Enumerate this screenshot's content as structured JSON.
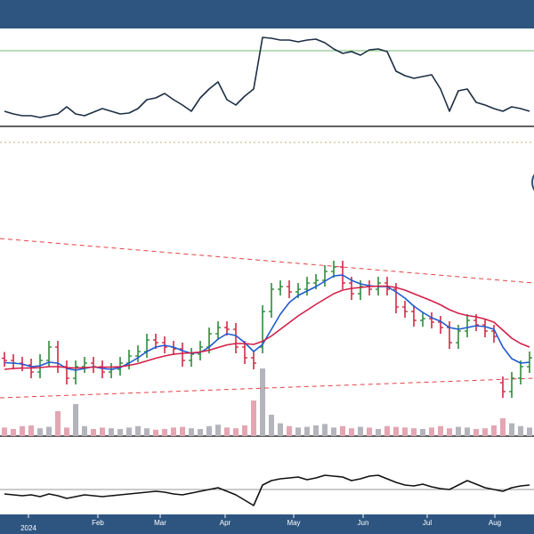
{
  "chart_data": [
    {
      "type": "line",
      "xlim": [
        -0.5,
        59.5
      ],
      "ylim": [
        0,
        110
      ],
      "series": [
        {
          "color": "#1c2e44",
          "values": [
            17,
            14,
            12,
            12,
            10,
            12,
            14,
            22,
            14,
            12,
            16,
            20,
            17,
            14,
            15,
            20,
            30,
            32,
            37,
            30,
            24,
            17,
            32,
            42,
            50,
            30,
            24,
            34,
            42,
            100,
            99,
            97,
            97,
            95,
            97,
            98,
            94,
            87,
            82,
            84,
            80,
            86,
            87,
            84,
            62,
            57,
            54,
            56,
            58,
            42,
            17,
            40,
            42,
            27,
            24,
            20,
            17,
            22,
            20,
            17
          ]
        }
      ],
      "hlines": [
        {
          "value": 85,
          "color": "#6dbb6d"
        }
      ]
    },
    {
      "type": "ohlc",
      "xlim": [
        -0.5,
        59.5
      ],
      "ylim": [
        40,
        105
      ],
      "y2lim": [
        0,
        100
      ],
      "up_color": "#2e8b3a",
      "down_color": "#d02a44",
      "open": [
        57.5,
        57,
        56.4,
        56,
        54.4,
        57,
        60,
        55.6,
        53,
        55.6,
        56.4,
        55.6,
        54.4,
        55,
        56.4,
        58,
        59,
        61.6,
        61,
        60,
        59.6,
        57,
        58.4,
        60,
        63,
        64.4,
        64,
        60,
        57.6,
        60,
        68,
        73,
        73.6,
        72.4,
        73,
        74.4,
        75,
        77,
        78,
        74.4,
        72,
        73.6,
        73,
        74.4,
        73,
        69,
        68,
        66,
        66.4,
        65.6,
        64.4,
        61,
        63.6,
        66,
        65,
        63.6,
        52,
        50,
        53,
        55.6
      ],
      "high": [
        58.9,
        58.4,
        57.8,
        57.4,
        58.4,
        61.4,
        61.4,
        57,
        57,
        57.8,
        57.8,
        57,
        56.4,
        57.8,
        59.4,
        60.4,
        63,
        63,
        62.4,
        61.4,
        61,
        59.8,
        61.4,
        64.4,
        65.8,
        65.8,
        65.4,
        61.4,
        59,
        69.4,
        74.4,
        75,
        75,
        74.4,
        75.8,
        76.4,
        78.4,
        79.4,
        79.4,
        75.8,
        75,
        75,
        75.8,
        75.8,
        74.4,
        70.4,
        69.4,
        67.8,
        67.8,
        67,
        65.8,
        65,
        67.4,
        67.4,
        66.4,
        65,
        53.4,
        54.4,
        57,
        59
      ],
      "low": [
        55.6,
        55,
        54.6,
        53,
        53,
        55.6,
        54.2,
        51.6,
        51.6,
        54.2,
        54.2,
        53,
        53,
        53.6,
        55,
        56.6,
        57.6,
        59.6,
        58.6,
        58.2,
        55.6,
        55.6,
        57,
        58.6,
        61.6,
        62.6,
        58.6,
        56.2,
        55,
        58.6,
        66.6,
        71.6,
        71,
        71,
        71.6,
        73,
        73.6,
        75.6,
        73,
        70.6,
        70.6,
        71.6,
        71.6,
        71.6,
        67.6,
        66.6,
        64.6,
        64.6,
        64.2,
        63,
        59.6,
        59.6,
        62.2,
        63.6,
        62.2,
        61,
        48.6,
        48.6,
        51.6,
        54.2
      ],
      "close": [
        57,
        56.4,
        56,
        54.4,
        57,
        60,
        55.6,
        53,
        55.6,
        56.4,
        55.6,
        54.4,
        55,
        56.4,
        58,
        59,
        61.6,
        61,
        60,
        59.6,
        57,
        58.4,
        60,
        63,
        64.4,
        64,
        60,
        57.6,
        56.4,
        68,
        73,
        73.6,
        72.4,
        73,
        74.4,
        75,
        77,
        78,
        74.4,
        72,
        73.6,
        73,
        74.4,
        73,
        69,
        68,
        66,
        66.4,
        65.6,
        64.4,
        61,
        63.6,
        66,
        65,
        63.6,
        62.4,
        50,
        53,
        55.6,
        57.6
      ],
      "series": [
        {
          "color": "#1f5ad0",
          "values": [
            56.5,
            56.4,
            56.2,
            55.6,
            55.8,
            56.6,
            56.4,
            55.2,
            54.8,
            55.2,
            55.6,
            55.2,
            55,
            55.4,
            56.4,
            57.6,
            59,
            60,
            60.4,
            60,
            59.2,
            58.6,
            58.8,
            60,
            61.8,
            63,
            62.6,
            61,
            59,
            60.6,
            64,
            67.4,
            70,
            71.6,
            72.6,
            73.6,
            74.8,
            76,
            76.2,
            75,
            74.2,
            73.8,
            73.6,
            73.6,
            72.4,
            71,
            69.2,
            67.8,
            66.6,
            65.8,
            64.4,
            64,
            64.4,
            64.8,
            64.6,
            64,
            60,
            57.4,
            56.4,
            56.6
          ]
        },
        {
          "color": "#d41f48",
          "values": [
            55,
            55.2,
            55.3,
            55.3,
            55.4,
            55.6,
            55.6,
            55.4,
            55.3,
            55.4,
            55.5,
            55.5,
            55.5,
            55.6,
            55.9,
            56.3,
            56.9,
            57.5,
            58,
            58.4,
            58.6,
            58.7,
            58.9,
            59.3,
            59.9,
            60.5,
            60.8,
            60.8,
            60.6,
            61.3,
            62.5,
            64,
            65.5,
            67,
            68.3,
            69.6,
            70.8,
            72,
            72.8,
            73.2,
            73.4,
            73.6,
            73.7,
            73.7,
            73.4,
            72.8,
            72,
            71.2,
            70.4,
            69.5,
            68.4,
            67.6,
            67.1,
            66.8,
            66.3,
            65.6,
            63.8,
            62,
            60.8,
            60
          ]
        }
      ],
      "volume": [
        12,
        10,
        14,
        15,
        11,
        13,
        35,
        12,
        45,
        14,
        10,
        12,
        11,
        10,
        12,
        14,
        11,
        9,
        10,
        12,
        13,
        11,
        10,
        14,
        16,
        12,
        11,
        15,
        50,
        95,
        30,
        18,
        14,
        12,
        13,
        15,
        17,
        12,
        14,
        11,
        13,
        12,
        10,
        14,
        13,
        12,
        11,
        10,
        12,
        14,
        11,
        13,
        12,
        10,
        11,
        15,
        25,
        18,
        14,
        12
      ],
      "volume_up_color": "#b4b4bc",
      "volume_down_color": "#e3a6b2",
      "trendlines": [
        {
          "color": "#e0424a",
          "x": [
            -0.5,
            59.5
          ],
          "values": [
            84.4,
            74.4
          ]
        },
        {
          "color": "#e0424a",
          "x": [
            -0.5,
            59.5
          ],
          "values": [
            48.6,
            53
          ]
        }
      ]
    },
    {
      "type": "line",
      "xlim": [
        -0.5,
        59.5
      ],
      "ylim": [
        0,
        78
      ],
      "series": [
        {
          "color": "#111111",
          "values": [
            23,
            22,
            21,
            22,
            20,
            23,
            21,
            18,
            20,
            22,
            21,
            20,
            21,
            22,
            23,
            24,
            25,
            26,
            25,
            23,
            22,
            24,
            26,
            28,
            30,
            26,
            22,
            16,
            10,
            33,
            38,
            40,
            41,
            42,
            39,
            41,
            44,
            43,
            42,
            38,
            40,
            43,
            44,
            40,
            36,
            33,
            32,
            34,
            31,
            29,
            28,
            33,
            38,
            34,
            30,
            28,
            26,
            30,
            32,
            33
          ]
        }
      ],
      "hlines": [
        {
          "value": 28,
          "color": "#999999"
        }
      ],
      "xticks": [
        {
          "value": 10.5,
          "label": "Feb"
        },
        {
          "value": 17.5,
          "label": "Mar"
        },
        {
          "value": 24.8,
          "label": "Apr"
        },
        {
          "value": 32.5,
          "label": "May"
        },
        {
          "value": 40.3,
          "label": "Jun"
        },
        {
          "value": 47.5,
          "label": "Jul"
        },
        {
          "value": 55.1,
          "label": "Aug"
        }
      ],
      "year_tick": {
        "value": 2.7,
        "label": "2024"
      }
    }
  ]
}
